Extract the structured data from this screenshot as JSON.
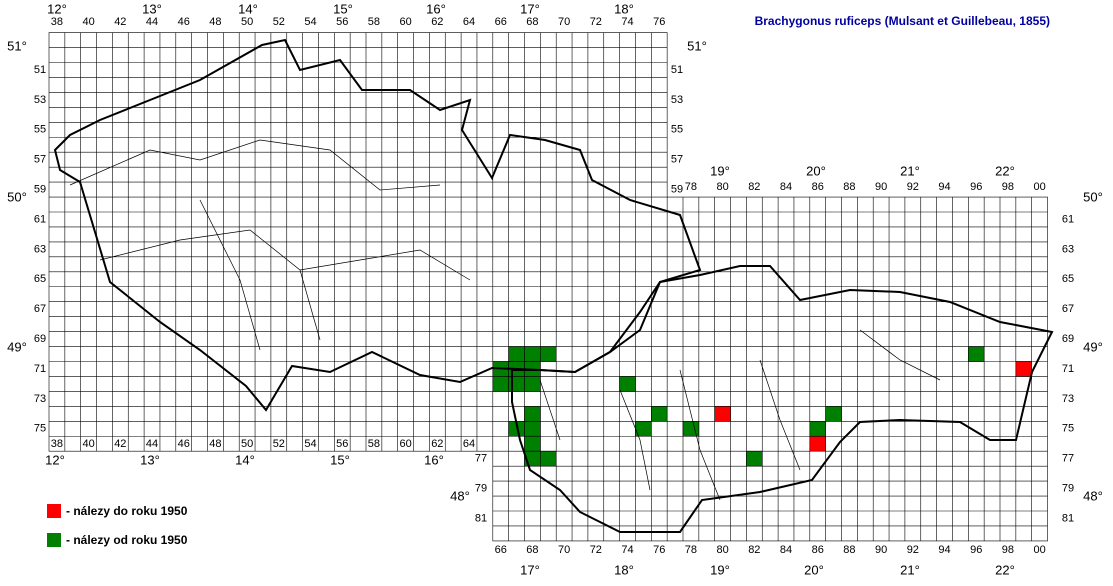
{
  "title": "Brachygonus ruficeps (Mulsant et Guillebeau, 1855)",
  "legend": [
    {
      "label": "- nálezy do roku 1950",
      "color": "#ff0000"
    },
    {
      "label": "- nálezy od roku 1950",
      "color": "#008000"
    }
  ],
  "finds_before_1950": [
    [
      80,
      74
    ],
    [
      86,
      76
    ],
    [
      99,
      71
    ]
  ],
  "finds_since_1950": [
    [
      67,
      70
    ],
    [
      68,
      70
    ],
    [
      69,
      70
    ],
    [
      66,
      71
    ],
    [
      67,
      71
    ],
    [
      68,
      71
    ],
    [
      66,
      72
    ],
    [
      67,
      72
    ],
    [
      68,
      72
    ],
    [
      68,
      74
    ],
    [
      67,
      75
    ],
    [
      68,
      75
    ],
    [
      68,
      76
    ],
    [
      68,
      77
    ],
    [
      69,
      77
    ],
    [
      74,
      72
    ],
    [
      76,
      74
    ],
    [
      75,
      75
    ],
    [
      78,
      75
    ],
    [
      86,
      75
    ],
    [
      87,
      74
    ],
    [
      82,
      77
    ],
    [
      96,
      70
    ]
  ],
  "columns_top": [
    "38",
    "40",
    "42",
    "44",
    "46",
    "48",
    "50",
    "52",
    "54",
    "56",
    "58",
    "60",
    "62",
    "64",
    "66",
    "68",
    "70",
    "72",
    "74",
    "76"
  ],
  "columns_top_right": [
    "78",
    "80",
    "82",
    "84",
    "86",
    "88",
    "90",
    "92",
    "94",
    "96",
    "98",
    "00"
  ],
  "columns_bottom_left": [
    "38",
    "40",
    "42",
    "44",
    "46",
    "48",
    "50",
    "52",
    "54",
    "56",
    "58",
    "60",
    "62",
    "64"
  ],
  "columns_bottom_right": [
    "66",
    "68",
    "70",
    "72",
    "74",
    "76",
    "78",
    "80",
    "82",
    "84",
    "86",
    "88",
    "90",
    "92",
    "94",
    "96",
    "98",
    "00"
  ],
  "rows_left": [
    "51",
    "53",
    "55",
    "57",
    "59",
    "61",
    "63",
    "65",
    "67",
    "69",
    "71",
    "73",
    "75"
  ],
  "rows_mid": [
    "51",
    "53",
    "55",
    "57",
    "59"
  ],
  "rows_right": [
    "61",
    "63",
    "65",
    "67",
    "69",
    "71",
    "73",
    "75",
    "77",
    "79",
    "81"
  ],
  "rows_bottom_left": [
    "77",
    "79",
    "81"
  ],
  "degrees_top": [
    "12°",
    "13°",
    "14°",
    "15°",
    "16°",
    "17°",
    "18°"
  ],
  "degrees_top_right": [
    "19°",
    "20°",
    "21°",
    "22°"
  ],
  "degrees_bottom_left": [
    "12°",
    "13°",
    "14°",
    "15°",
    "16°"
  ],
  "degrees_bottom_right": [
    "17°",
    "18°",
    "19°",
    "20°",
    "21°",
    "22°"
  ],
  "latitudes_left": [
    "51°",
    "50°",
    "49°"
  ],
  "latitudes_right": [
    "51°",
    "50°",
    "49°",
    "48°"
  ],
  "latitude_bottom_left": "48°"
}
